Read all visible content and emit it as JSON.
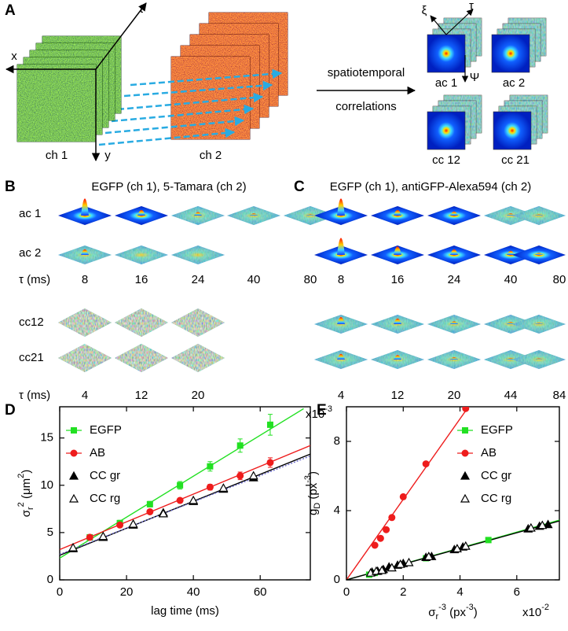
{
  "panel_a": {
    "label": "A",
    "axes": {
      "x": "x",
      "t": "t",
      "y": "y"
    },
    "channels": [
      "ch 1",
      "ch 2"
    ],
    "arrow_text": [
      "spatiotemporal",
      "correlations"
    ],
    "corr_axes": {
      "xi": "ξ",
      "tau": "τ",
      "psi": "Ψ"
    },
    "correlations": [
      "ac 1",
      "ac 2",
      "cc 12",
      "cc 21"
    ]
  },
  "panel_b": {
    "label": "B",
    "title": "EGFP (ch 1), 5-Tamara (ch 2)",
    "rows": [
      "ac 1",
      "ac 2",
      "τ (ms)",
      "cc12",
      "cc21",
      "τ (ms)"
    ],
    "auto_lags": [
      8,
      16,
      24,
      40,
      80
    ],
    "cross_lags": [
      4,
      12,
      20
    ]
  },
  "panel_c": {
    "label": "C",
    "title": "EGFP (ch 1), antiGFP-Alexa594 (ch 2)",
    "auto_lags": [
      8,
      16,
      24,
      40,
      80
    ],
    "cross_lags": [
      4,
      12,
      20,
      44,
      84
    ]
  },
  "chart_data": [
    {
      "type": "scatter",
      "panel_label": "D",
      "x_label": "lag time (ms)",
      "y_label": [
        "σ",
        "r",
        "2",
        " (μm",
        "2",
        ")"
      ],
      "xlim": [
        0,
        75
      ],
      "xticks": [
        0,
        20,
        40,
        60
      ],
      "ylim": [
        0,
        18.3
      ],
      "yticks": [
        0,
        5,
        10,
        15
      ],
      "legend": "upper left",
      "series": [
        {
          "name": "EGFP",
          "color": "#22e022",
          "marker": "square",
          "x": [
            9,
            18,
            27,
            36,
            45,
            54,
            63
          ],
          "values": [
            4.5,
            6.0,
            8.0,
            10.0,
            12.0,
            14.2,
            16.4
          ],
          "errors": [
            0.2,
            0.3,
            0.3,
            0.4,
            0.5,
            0.7,
            1.1
          ]
        },
        {
          "name": "AB",
          "color": "#ee1c1c",
          "marker": "circle",
          "x": [
            9,
            18,
            27,
            36,
            45,
            54,
            63
          ],
          "values": [
            4.5,
            5.8,
            7.2,
            8.4,
            9.8,
            11.0,
            12.4
          ],
          "errors": [
            0.15,
            0.2,
            0.2,
            0.25,
            0.3,
            0.4,
            0.5
          ]
        },
        {
          "name": "CC gr",
          "color": "#000000",
          "marker": "triangle",
          "x": [
            4,
            13,
            22,
            31,
            40,
            49,
            58
          ],
          "values": [
            3.3,
            4.5,
            5.8,
            7.1,
            8.3,
            9.6,
            10.8
          ]
        },
        {
          "name": "CC rg",
          "color": "#000000",
          "marker": "triangle-open",
          "x": [
            4,
            13,
            22,
            31,
            40,
            49,
            58
          ],
          "values": [
            3.4,
            4.6,
            5.9,
            7.0,
            8.4,
            9.7,
            11.0
          ]
        }
      ],
      "fits": [
        {
          "color": "#22e022",
          "x": [
            0,
            73
          ],
          "values": [
            2.3,
            18.1
          ]
        },
        {
          "color": "#ee1c1c",
          "x": [
            0,
            75
          ],
          "values": [
            3.2,
            14.2
          ]
        },
        {
          "color": "#000000",
          "x": [
            0,
            75
          ],
          "values": [
            2.6,
            13.3
          ]
        },
        {
          "color": "#6a6acd",
          "x": [
            0,
            75
          ],
          "values": [
            2.7,
            13.1
          ]
        }
      ]
    },
    {
      "type": "scatter",
      "panel_label": "E",
      "x_label": [
        "σ",
        "r",
        "-3",
        " (px",
        "-3",
        ")"
      ],
      "y_label": [
        "g",
        "D",
        " (px",
        "-3",
        ")"
      ],
      "x_multiplier": [
        "x10",
        "-2"
      ],
      "y_multiplier": [
        "x10",
        "-3"
      ],
      "xlim": [
        0,
        7.5
      ],
      "xticks": [
        0,
        2,
        4,
        6
      ],
      "ylim": [
        0,
        10
      ],
      "yticks": [
        0,
        4,
        8
      ],
      "legend": "upper right",
      "series": [
        {
          "name": "EGFP",
          "color": "#22e022",
          "marker": "square",
          "x": [
            0.8,
            1.0,
            2.8,
            5.0
          ],
          "values": [
            0.3,
            0.4,
            1.25,
            2.3
          ]
        },
        {
          "name": "AB",
          "color": "#ee1c1c",
          "marker": "circle",
          "x": [
            1.0,
            1.2,
            1.4,
            1.6,
            2.0,
            2.8,
            4.2
          ],
          "values": [
            2.0,
            2.4,
            2.9,
            3.6,
            4.8,
            6.7,
            9.9
          ]
        },
        {
          "name": "CC gr",
          "color": "#000000",
          "marker": "triangle",
          "x": [
            0.9,
            1.1,
            1.3,
            1.5,
            1.8,
            2.0,
            2.8,
            3.0,
            3.8,
            4.1,
            6.4,
            6.8,
            7.1
          ],
          "values": [
            0.45,
            0.5,
            0.6,
            0.75,
            0.85,
            0.95,
            1.3,
            1.35,
            1.75,
            1.9,
            2.95,
            3.1,
            3.2
          ]
        },
        {
          "name": "CC rg",
          "color": "#000000",
          "marker": "triangle-open",
          "x": [
            0.85,
            1.05,
            1.25,
            1.6,
            1.9,
            2.2,
            2.9,
            3.9,
            4.2,
            6.5,
            6.9
          ],
          "values": [
            0.4,
            0.5,
            0.55,
            0.7,
            0.9,
            1.0,
            1.35,
            1.8,
            1.95,
            3.0,
            3.15
          ]
        }
      ],
      "fits": [
        {
          "color": "#ee1c1c",
          "x": [
            0,
            4.3
          ],
          "values": [
            0,
            10.0
          ]
        },
        {
          "color": "#22e022",
          "x": [
            0,
            7.5
          ],
          "values": [
            0,
            3.45
          ]
        },
        {
          "color": "#000000",
          "x": [
            0,
            7.5
          ],
          "values": [
            0,
            3.4
          ]
        }
      ]
    }
  ]
}
